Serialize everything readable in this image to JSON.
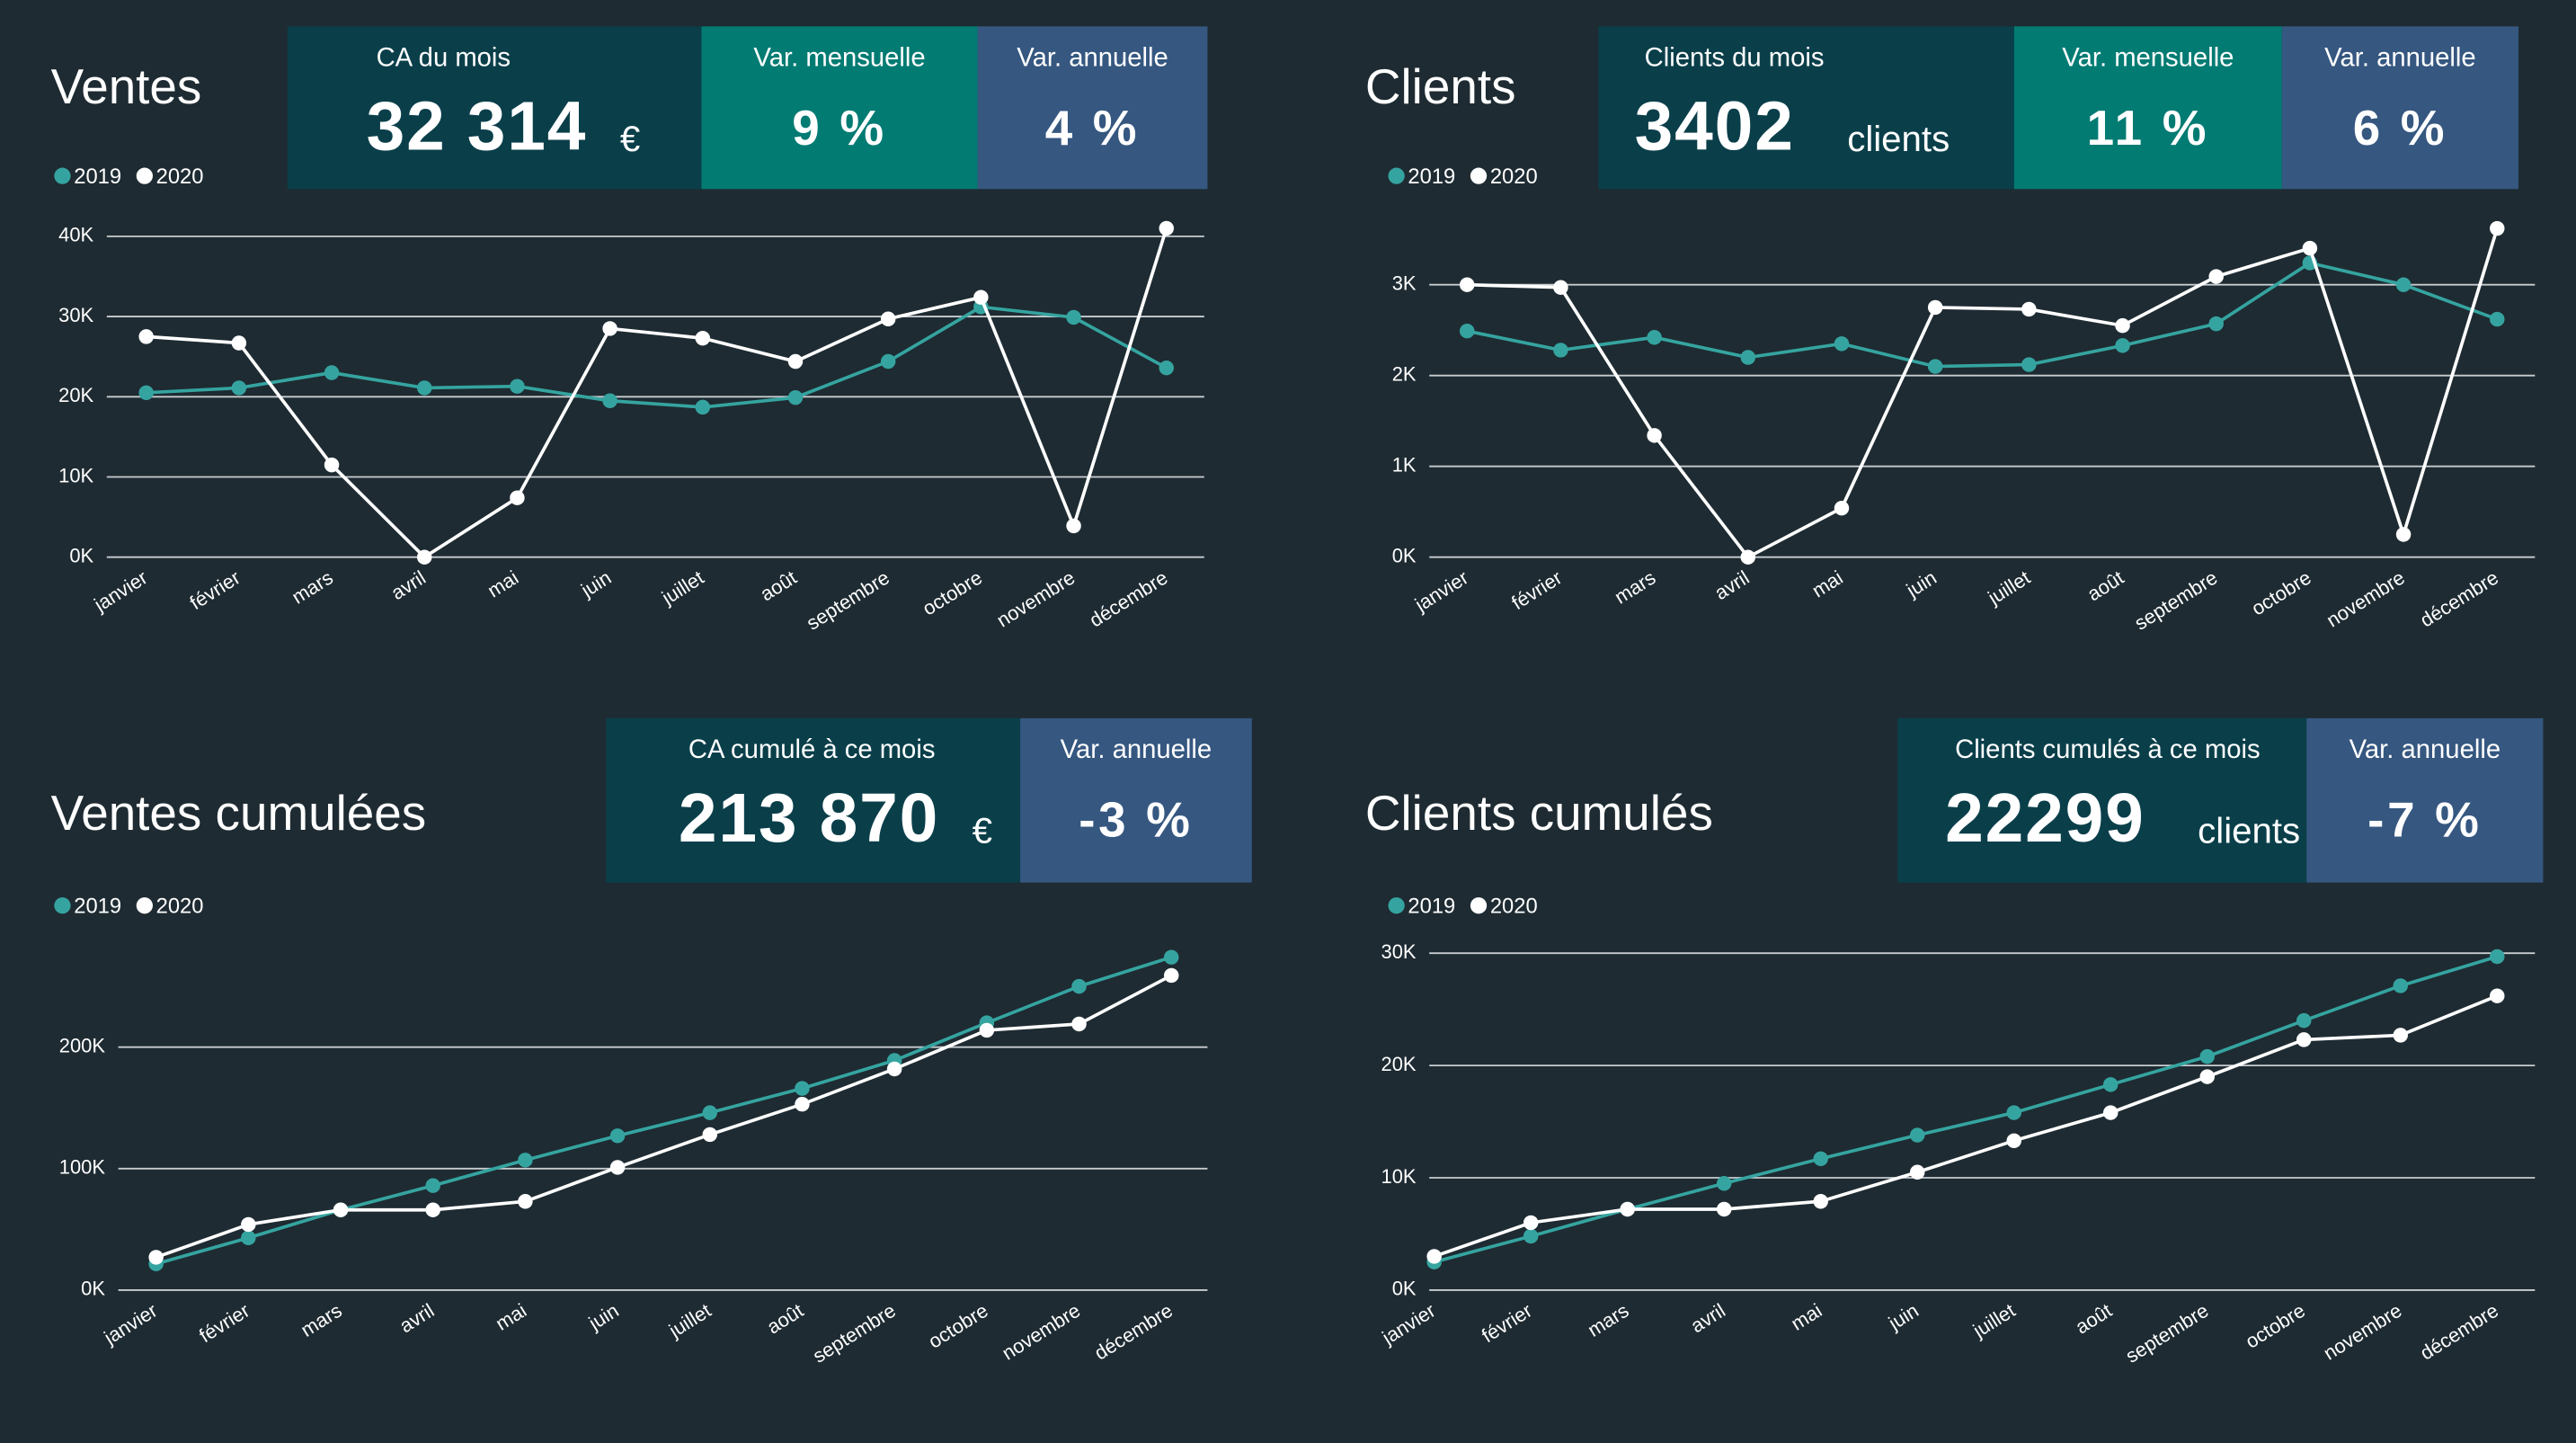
{
  "chart_data": [
    {
      "type": "line",
      "title": "Ventes",
      "categories": [
        "janvier",
        "février",
        "mars",
        "avril",
        "mai",
        "juin",
        "juillet",
        "août",
        "septembre",
        "octobre",
        "novembre",
        "décembre"
      ],
      "series": [
        {
          "name": "2019",
          "color": "#35a4a0",
          "values": [
            20500,
            21100,
            23000,
            21100,
            21300,
            19500,
            18700,
            19900,
            24400,
            31200,
            29900,
            23600
          ]
        },
        {
          "name": "2020",
          "color": "#ffffff",
          "values": [
            27500,
            26700,
            11500,
            0,
            7400,
            28500,
            27300,
            24400,
            29700,
            32400,
            3900,
            41000
          ]
        }
      ],
      "ylim": [
        0,
        42000
      ],
      "yticks": [
        {
          "value": 0,
          "label": "0K"
        },
        {
          "value": 10000,
          "label": "10K"
        },
        {
          "value": 20000,
          "label": "20K"
        },
        {
          "value": 30000,
          "label": "30K"
        },
        {
          "value": 40000,
          "label": "40K"
        }
      ],
      "grid": true
    },
    {
      "type": "line",
      "title": "Clients",
      "categories": [
        "janvier",
        "février",
        "mars",
        "avril",
        "mai",
        "juin",
        "juillet",
        "août",
        "septembre",
        "octobre",
        "novembre",
        "décembre"
      ],
      "series": [
        {
          "name": "2019",
          "color": "#35a4a0",
          "values": [
            2490,
            2280,
            2420,
            2200,
            2350,
            2100,
            2120,
            2330,
            2570,
            3240,
            3000,
            2620
          ]
        },
        {
          "name": "2020",
          "color": "#ffffff",
          "values": [
            3000,
            2970,
            1340,
            0,
            540,
            2750,
            2730,
            2550,
            3090,
            3402,
            250,
            3620
          ]
        }
      ],
      "ylim": [
        0,
        3800
      ],
      "yticks": [
        {
          "value": 0,
          "label": "0K"
        },
        {
          "value": 1000,
          "label": "1K"
        },
        {
          "value": 2000,
          "label": "2K"
        },
        {
          "value": 3000,
          "label": "3K"
        }
      ],
      "grid": true
    },
    {
      "type": "line",
      "title": "Ventes cumulées",
      "categories": [
        "janvier",
        "février",
        "mars",
        "avril",
        "mai",
        "juin",
        "juillet",
        "août",
        "septembre",
        "octobre",
        "novembre",
        "décembre"
      ],
      "series": [
        {
          "name": "2019",
          "color": "#35a4a0",
          "values": [
            21600,
            43000,
            66000,
            86000,
            107000,
            127000,
            146000,
            166000,
            189000,
            220000,
            250000,
            274000
          ]
        },
        {
          "name": "2020",
          "color": "#ffffff",
          "values": [
            27000,
            54000,
            66000,
            66000,
            73000,
            101000,
            128000,
            153000,
            182000,
            213870,
            219000,
            259000
          ]
        }
      ],
      "ylim": [
        0,
        280000
      ],
      "yticks": [
        {
          "value": 0,
          "label": "0K"
        },
        {
          "value": 100000,
          "label": "100K"
        },
        {
          "value": 200000,
          "label": "200K"
        }
      ],
      "grid": true
    },
    {
      "type": "line",
      "title": "Clients cumulés",
      "categories": [
        "janvier",
        "février",
        "mars",
        "avril",
        "mai",
        "juin",
        "juillet",
        "août",
        "septembre",
        "octobre",
        "novembre",
        "décembre"
      ],
      "series": [
        {
          "name": "2019",
          "color": "#35a4a0",
          "values": [
            2500,
            4800,
            7200,
            9500,
            11700,
            13800,
            15800,
            18300,
            20800,
            24000,
            27100,
            29700
          ]
        },
        {
          "name": "2020",
          "color": "#ffffff",
          "values": [
            3000,
            6000,
            7200,
            7200,
            7900,
            10500,
            13300,
            15800,
            19000,
            22299,
            22700,
            26200
          ]
        }
      ],
      "ylim": [
        0,
        30000
      ],
      "yticks": [
        {
          "value": 0,
          "label": "0K"
        },
        {
          "value": 10000,
          "label": "10K"
        },
        {
          "value": 20000,
          "label": "20K"
        },
        {
          "value": 30000,
          "label": "30K"
        }
      ],
      "grid": true
    }
  ],
  "cards": [
    [
      {
        "label": "CA du mois",
        "value": "32 314",
        "unit": "€"
      },
      {
        "label": "Var. mensuelle",
        "value": "9 %"
      },
      {
        "label": "Var. annuelle",
        "value": "4 %"
      }
    ],
    [
      {
        "label": "Clients du mois",
        "value": "3402",
        "unit": "clients"
      },
      {
        "label": "Var. mensuelle",
        "value": "11 %"
      },
      {
        "label": "Var. annuelle",
        "value": "6 %"
      }
    ],
    [
      {
        "label": "CA cumulé à ce mois",
        "value": "213 870",
        "unit": "€"
      },
      {
        "label": "Var. annuelle",
        "value": "-3 %"
      }
    ],
    [
      {
        "label": "Clients cumulés à ce mois",
        "value": "22299",
        "unit": "clients"
      },
      {
        "label": "Var. annuelle",
        "value": "-7 %"
      }
    ]
  ]
}
